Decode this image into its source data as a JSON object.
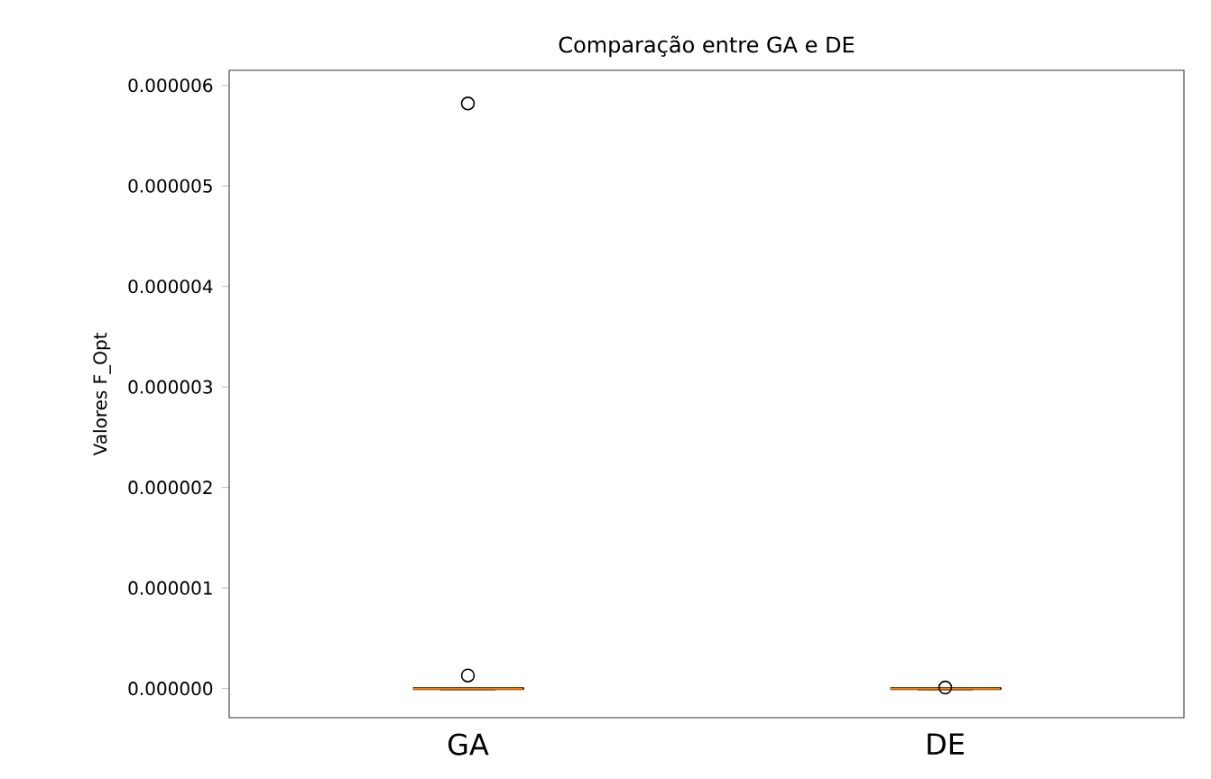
{
  "chart_data": {
    "type": "box",
    "title": "Comparação entre GA e DE",
    "ylabel": "Valores F_Opt",
    "categories": [
      "GA",
      "DE"
    ],
    "boxes": [
      {
        "low": 0,
        "q1": 0,
        "median": 0,
        "q3": 0,
        "high": 0,
        "outliers": [
          5.82e-06,
          1.3e-07
        ]
      },
      {
        "low": 0,
        "q1": 0,
        "median": 0,
        "q3": 0,
        "high": 0,
        "outliers": [
          1e-08
        ]
      }
    ],
    "ylim": [
      -2.9e-07,
      6.15e-06
    ],
    "yticks": [
      {
        "value": 0,
        "label": "0.000000"
      },
      {
        "value": 1e-06,
        "label": "0.000001"
      },
      {
        "value": 2e-06,
        "label": "0.000002"
      },
      {
        "value": 3e-06,
        "label": "0.000003"
      },
      {
        "value": 4e-06,
        "label": "0.000004"
      },
      {
        "value": 5e-06,
        "label": "0.000005"
      },
      {
        "value": 6e-06,
        "label": "0.000006"
      }
    ],
    "marker": "circle"
  }
}
